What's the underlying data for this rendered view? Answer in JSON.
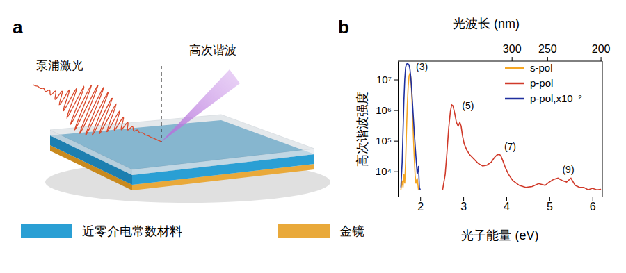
{
  "diagram": {
    "panel_label": "a",
    "pump_label": "泵浦激光",
    "harmonic_label": "高次谐波",
    "legend": [
      {
        "label": "近零介电常数材料",
        "color": "#2a9fd4"
      },
      {
        "label": "金镜",
        "color": "#e9a93a"
      }
    ]
  },
  "chart_data": {
    "type": "line",
    "panel_label": "b",
    "xlabel": "光子能量 (eV)",
    "ylabel": "高次谐波强度",
    "x2label": "光波长 (nm)",
    "xlim": [
      1.48,
      6.23
    ],
    "xticks": [
      2,
      3,
      4,
      5,
      6
    ],
    "x2lim": [
      837.7,
      199.0
    ],
    "x2ticks": [
      300,
      250,
      200
    ],
    "ylim": [
      1500,
      40000000
    ],
    "log": "y",
    "yticks": [
      {
        "value": 10000,
        "label": "10⁴"
      },
      {
        "value": 100000,
        "label": "10⁵"
      },
      {
        "value": 1000000,
        "label": "10⁶"
      },
      {
        "value": 10000000,
        "label": "10⁷"
      }
    ],
    "legend": "upper right",
    "series": [
      {
        "name": "s-pol",
        "color": "#f5a623",
        "x": [
          1.55,
          1.58,
          1.6,
          1.62,
          1.64,
          1.66,
          1.68,
          1.7,
          1.72,
          1.74,
          1.76,
          1.78,
          1.8,
          1.82,
          1.84,
          1.86,
          1.88,
          1.9,
          1.93,
          1.96
        ],
        "values": [
          2500,
          5000,
          3000,
          8000,
          4000,
          20000,
          200000,
          1500000,
          6000000,
          13000000,
          16000000,
          12000000,
          4000000,
          900000,
          150000,
          30000,
          8000,
          4000,
          6000,
          2500
        ]
      },
      {
        "name": "p-pol",
        "color": "#d03a2a",
        "x": [
          2.52,
          2.58,
          2.62,
          2.66,
          2.7,
          2.73,
          2.76,
          2.8,
          2.84,
          2.88,
          2.92,
          2.95,
          2.98,
          3.02,
          3.08,
          3.15,
          3.25,
          3.35,
          3.45,
          3.55,
          3.65,
          3.72,
          3.78,
          3.83,
          3.87,
          3.92,
          3.98,
          4.05,
          4.15,
          4.3,
          4.45,
          4.6,
          4.75,
          4.9,
          5.0,
          5.1,
          5.2,
          5.3,
          5.4,
          5.5,
          5.6,
          5.7,
          5.8,
          5.9,
          6.0,
          6.1,
          6.2
        ],
        "values": [
          2500,
          8000,
          40000,
          250000,
          900000,
          1500000,
          1400000,
          800000,
          400000,
          300000,
          400000,
          300000,
          150000,
          80000,
          50000,
          35000,
          25000,
          18000,
          15000,
          16000,
          20000,
          28000,
          34000,
          36000,
          33000,
          22000,
          13000,
          8000,
          5000,
          3500,
          3000,
          3200,
          4000,
          3500,
          4500,
          5500,
          6000,
          5000,
          4500,
          6000,
          3500,
          3000,
          3000,
          2500,
          2800,
          2500,
          2600
        ]
      },
      {
        "name": "p-pol,x10⁻²",
        "color": "#1f2f9e",
        "x": [
          1.55,
          1.58,
          1.6,
          1.62,
          1.64,
          1.66,
          1.68,
          1.7,
          1.72,
          1.74,
          1.76,
          1.78,
          1.8,
          1.83,
          1.86,
          1.9,
          1.93,
          1.96,
          1.98,
          2.0
        ],
        "values": [
          3000,
          20000,
          200000,
          2000000,
          10000000,
          25000000,
          32000000,
          33000000,
          32000000,
          30000000,
          22000000,
          12000000,
          5000000,
          1000000,
          200000,
          30000,
          8000,
          15000,
          3000,
          2500
        ]
      }
    ],
    "annotations": [
      {
        "text": "(3)",
        "x": 1.9,
        "y": 20000000
      },
      {
        "text": "(5)",
        "x": 2.97,
        "y": 1100000
      },
      {
        "text": "(7)",
        "x": 3.95,
        "y": 50000
      },
      {
        "text": "(9)",
        "x": 5.3,
        "y": 9000
      }
    ]
  }
}
